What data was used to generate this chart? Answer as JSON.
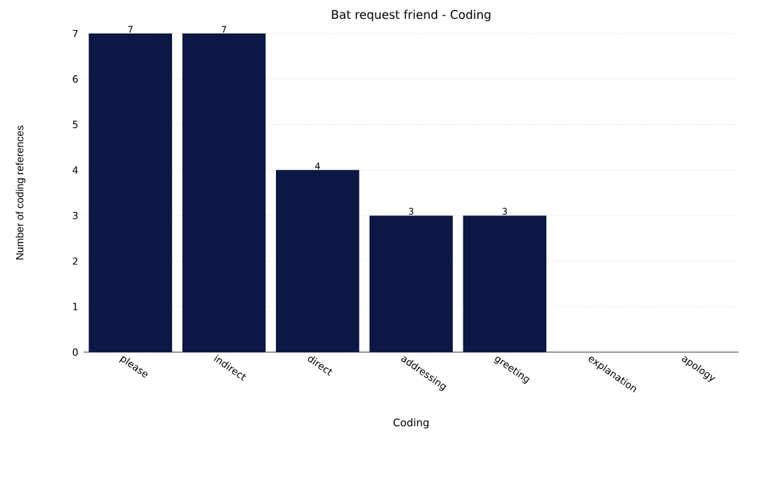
{
  "chart_data": {
    "type": "bar",
    "title": "Bat request friend - Coding",
    "xlabel": "Coding",
    "ylabel": "Number of coding references",
    "categories": [
      "please",
      "indirect",
      "direct",
      "addressing",
      "greeting",
      "explanation",
      "apology"
    ],
    "values": [
      7,
      7,
      4,
      3,
      3,
      0,
      0
    ],
    "value_labels": [
      "7",
      "7",
      "4",
      "3",
      "3",
      null,
      null
    ],
    "color": "#0c1744",
    "ylim": [
      0,
      7
    ],
    "yticks": [
      0,
      1,
      2,
      3,
      4,
      5,
      6,
      7
    ],
    "grid": "y"
  }
}
